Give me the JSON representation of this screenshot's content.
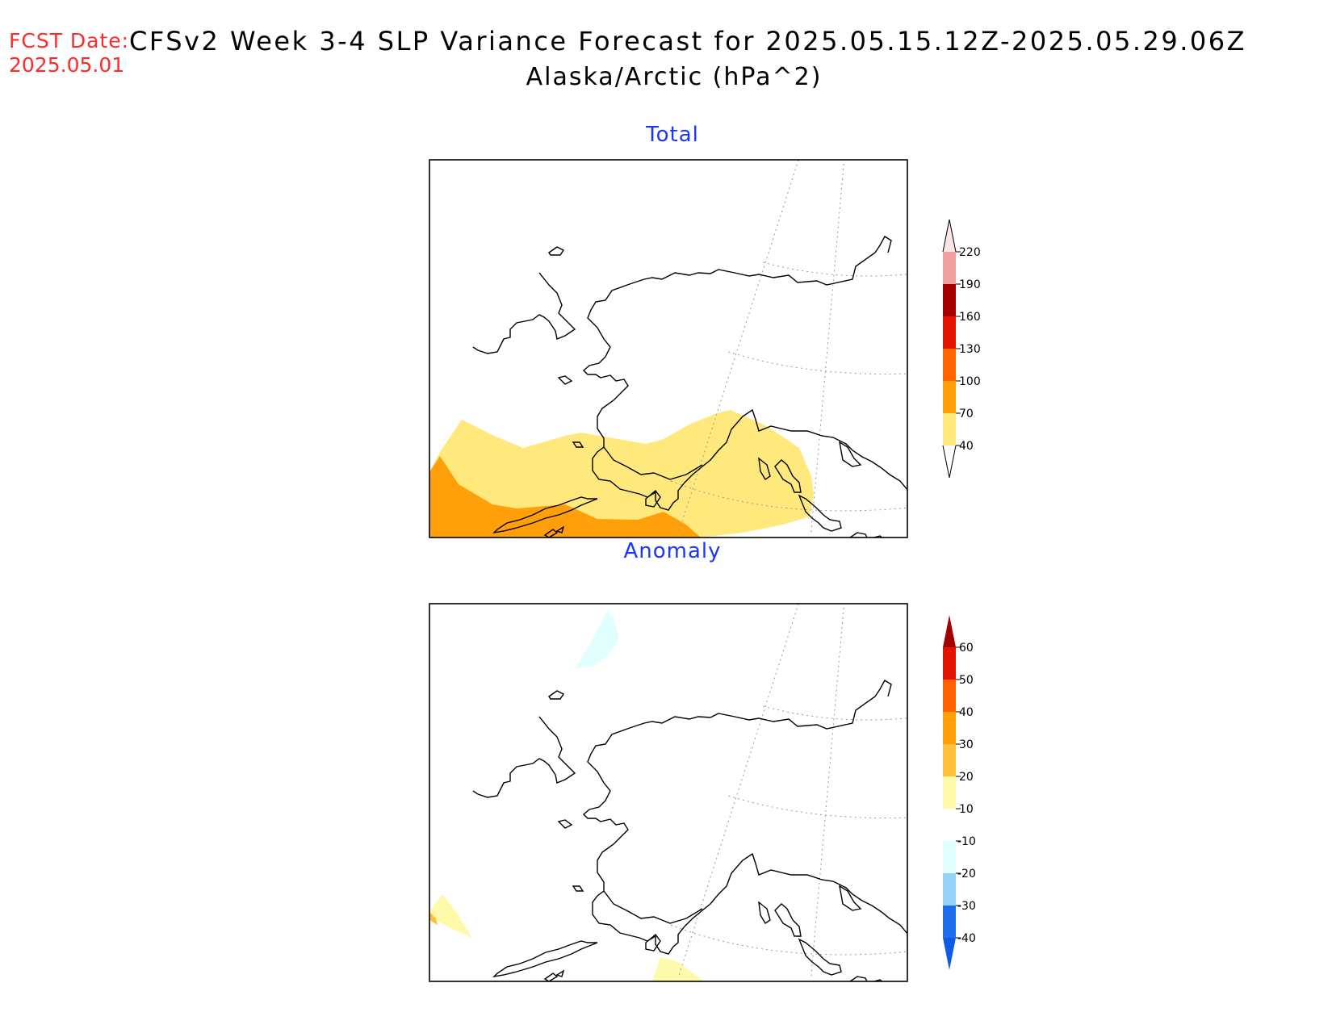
{
  "header": {
    "fcst_label": "FCST Date:",
    "fcst_date": "2025.05.01",
    "title_line1": "CFSv2 Week 3-4 SLP Variance Forecast for 2025.05.15.12Z-2025.05.29.06Z",
    "title_line2": "Alaska/Arctic (hPa^2)"
  },
  "panels": [
    {
      "title": "Total",
      "colorbar": {
        "levels": [
          "40",
          "70",
          "100",
          "130",
          "160",
          "190",
          "220"
        ],
        "colors": [
          "#ffe87c",
          "#ffa00a",
          "#ff6400",
          "#e11400",
          "#a50000",
          "#f0a0a0",
          "#ffe6e6"
        ]
      }
    },
    {
      "title": "Anomaly",
      "colorbar": {
        "levels": [
          "-40",
          "-30",
          "-20",
          "-10",
          "10",
          "20",
          "30",
          "40",
          "50",
          "60"
        ],
        "colors": [
          "#0f5ae6",
          "#1e6eeb",
          "#96d2fa",
          "#e1ffff",
          "#ffffff",
          "#fffaaa",
          "#ffc03c",
          "#ffa00a",
          "#ff6000",
          "#e11400",
          "#a50000"
        ]
      }
    }
  ]
}
